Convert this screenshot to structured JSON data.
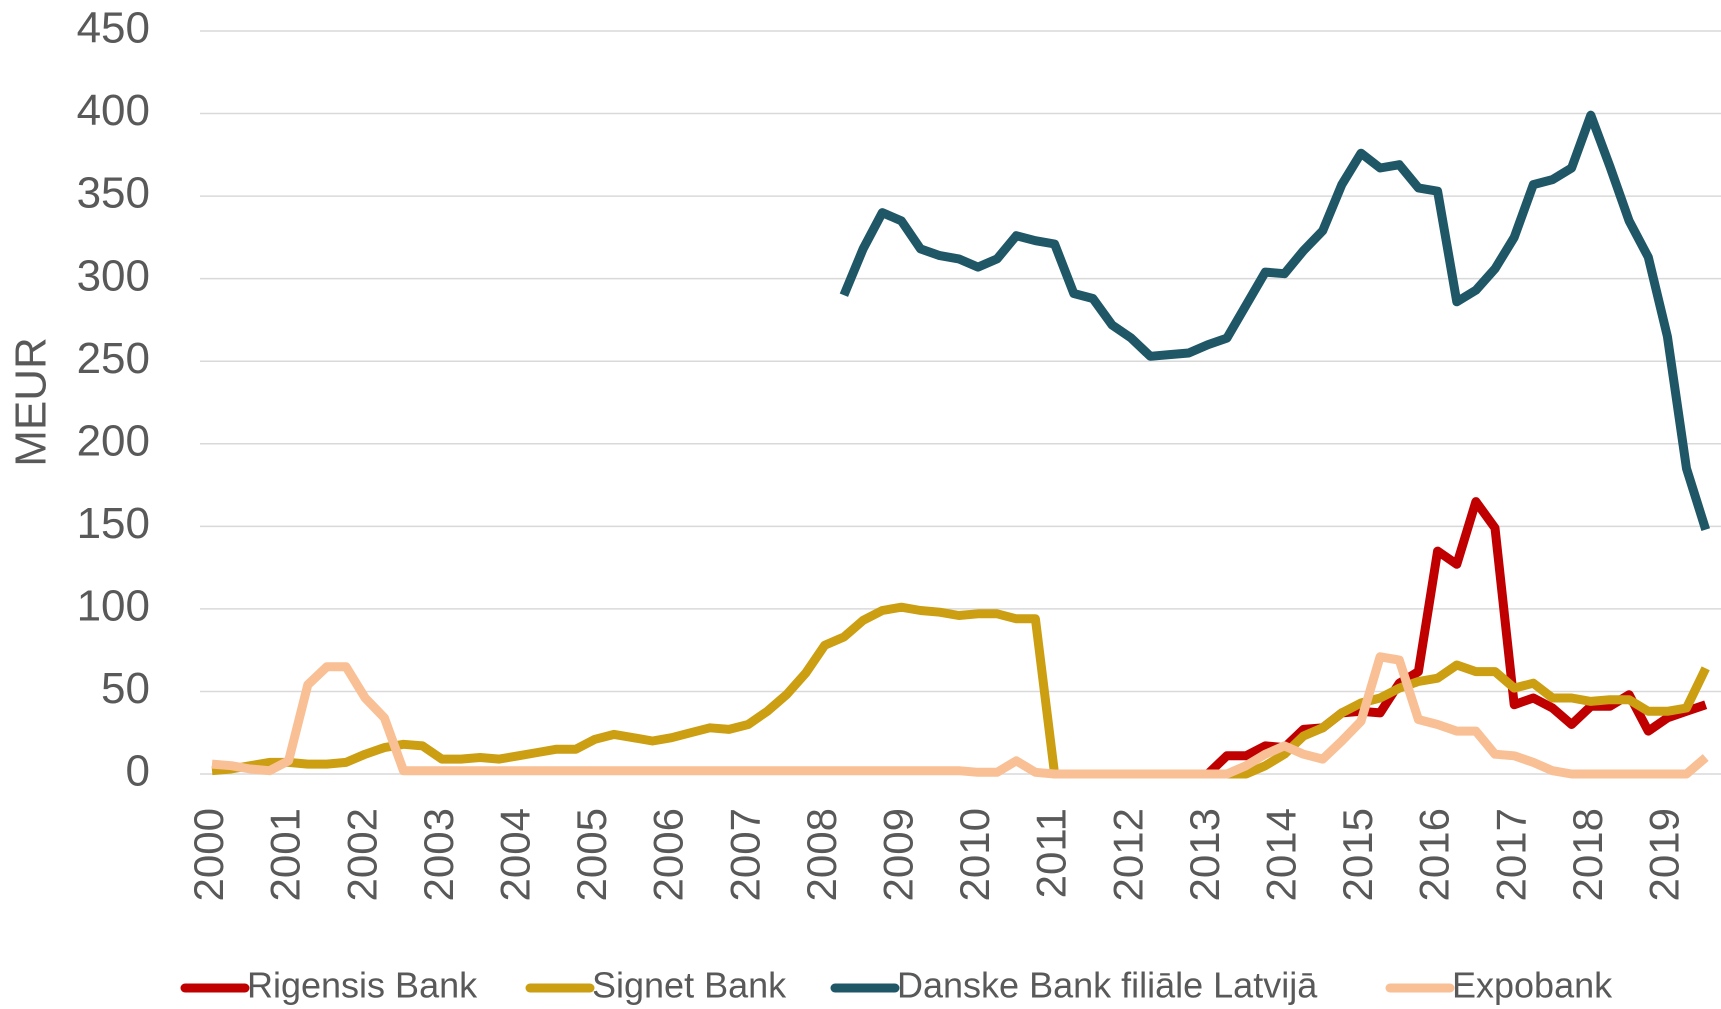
{
  "chart_data": {
    "type": "line",
    "y_label": "MEUR",
    "categories": [
      "2000",
      null,
      null,
      null,
      "2001",
      null,
      null,
      null,
      "2002",
      null,
      null,
      null,
      "2003",
      null,
      null,
      null,
      "2004",
      null,
      null,
      null,
      "2005",
      null,
      null,
      null,
      "2006",
      null,
      null,
      null,
      "2007",
      null,
      null,
      null,
      "2008",
      null,
      null,
      null,
      "2009",
      null,
      null,
      null,
      "2010",
      null,
      null,
      null,
      "2011",
      null,
      null,
      null,
      "2012",
      null,
      null,
      null,
      "2013",
      null,
      null,
      null,
      "2014",
      null,
      null,
      null,
      "2015",
      null,
      null,
      null,
      "2016",
      null,
      null,
      null,
      "2017",
      null,
      null,
      null,
      "2018",
      null,
      null,
      null,
      "2019",
      null,
      null
    ],
    "series": [
      {
        "name": "Rigensis Bank",
        "color": "#c00000",
        "values": [
          null,
          null,
          null,
          null,
          null,
          null,
          null,
          null,
          null,
          null,
          null,
          null,
          null,
          null,
          null,
          null,
          null,
          null,
          null,
          null,
          null,
          null,
          null,
          null,
          null,
          null,
          null,
          null,
          null,
          null,
          null,
          null,
          null,
          null,
          null,
          null,
          null,
          null,
          null,
          null,
          null,
          null,
          null,
          null,
          null,
          null,
          null,
          null,
          null,
          null,
          null,
          null,
          0,
          11,
          11,
          17,
          16,
          27,
          28,
          37,
          38,
          37,
          55,
          62,
          135,
          127,
          165,
          149,
          42,
          46,
          40,
          30,
          41,
          41,
          48,
          26,
          34,
          38,
          42
        ]
      },
      {
        "name": "Signet Bank",
        "color": "#cc9e12",
        "values": [
          2,
          3,
          5,
          7,
          7,
          6,
          6,
          7,
          12,
          16,
          18,
          17,
          9,
          9,
          10,
          9,
          11,
          13,
          15,
          15,
          21,
          24,
          22,
          20,
          22,
          25,
          28,
          27,
          30,
          38,
          48,
          61,
          78,
          83,
          93,
          99,
          101,
          99,
          98,
          96,
          97,
          97,
          94,
          94,
          0,
          0,
          0,
          0,
          0,
          0,
          0,
          0,
          0,
          0,
          0,
          5,
          12,
          23,
          28,
          37,
          43,
          46,
          52,
          56,
          58,
          66,
          62,
          62,
          52,
          55,
          46,
          46,
          44,
          45,
          45,
          38,
          38,
          40,
          64
        ]
      },
      {
        "name": "Danske Bank filiāle Latvijā",
        "color": "#1f5767",
        "values": [
          null,
          null,
          null,
          null,
          null,
          null,
          null,
          null,
          null,
          null,
          null,
          null,
          null,
          null,
          null,
          null,
          null,
          null,
          null,
          null,
          null,
          null,
          null,
          null,
          null,
          null,
          null,
          null,
          null,
          null,
          null,
          null,
          null,
          290,
          318,
          340,
          335,
          318,
          314,
          312,
          307,
          312,
          326,
          323,
          321,
          291,
          288,
          272,
          264,
          253,
          254,
          255,
          260,
          264,
          284,
          304,
          303,
          317,
          329,
          357,
          376,
          367,
          369,
          355,
          353,
          286,
          293,
          306,
          325,
          357,
          360,
          367,
          399,
          368,
          335,
          313,
          265,
          185,
          148
        ]
      },
      {
        "name": "Expobank",
        "color": "#f9bf95",
        "values": [
          6,
          5,
          3,
          2,
          8,
          54,
          65,
          65,
          46,
          34,
          2,
          2,
          2,
          2,
          2,
          2,
          2,
          2,
          2,
          2,
          2,
          2,
          2,
          2,
          2,
          2,
          2,
          2,
          2,
          2,
          2,
          2,
          2,
          2,
          2,
          2,
          2,
          2,
          2,
          2,
          1,
          1,
          8,
          1,
          0,
          0,
          0,
          0,
          0,
          0,
          0,
          0,
          0,
          0,
          5,
          12,
          17,
          12,
          9,
          20,
          32,
          71,
          69,
          33,
          30,
          26,
          26,
          12,
          11,
          7,
          2,
          0,
          0,
          0,
          0,
          0,
          0,
          0,
          10
        ]
      }
    ],
    "ylim": [
      0,
      450
    ],
    "yticks": [
      0,
      50,
      100,
      150,
      200,
      250,
      300,
      350,
      400,
      450
    ],
    "grid": true,
    "legend": "bottom"
  }
}
